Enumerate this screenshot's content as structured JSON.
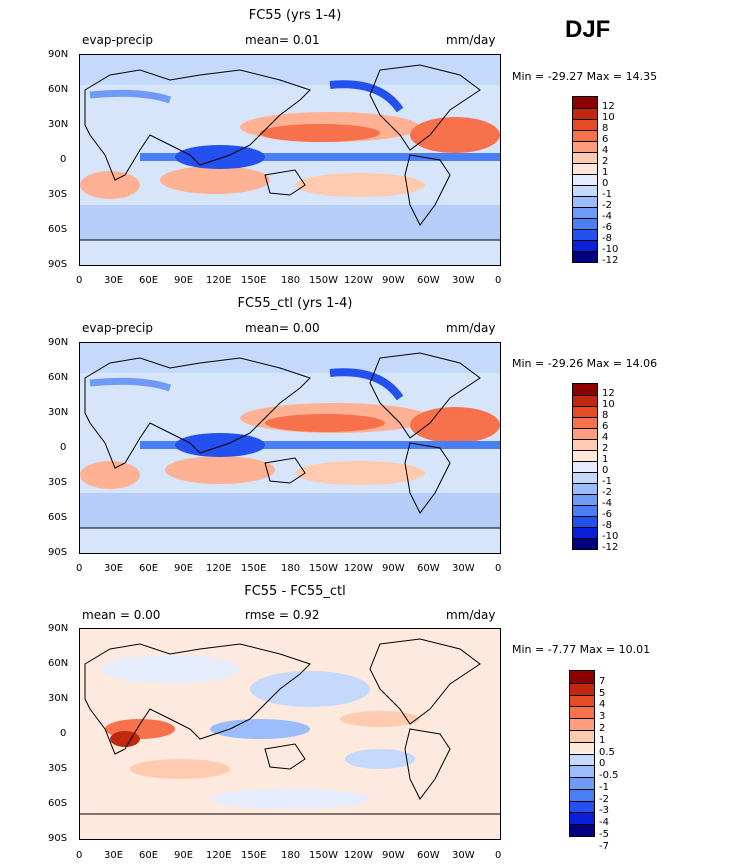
{
  "season": "DJF",
  "xticks": [
    "0",
    "30E",
    "60E",
    "90E",
    "120E",
    "150E",
    "180",
    "150W",
    "120W",
    "90W",
    "60W",
    "30W",
    "0"
  ],
  "yticks": [
    "90N",
    "60N",
    "30N",
    "0",
    "30S",
    "60S",
    "90S"
  ],
  "colors": {
    "ocean_base": "#d9e8ff",
    "land": "#cfe0f7",
    "coast": "#000000",
    "full_scale": [
      "#000080",
      "#0a1fd9",
      "#2450f0",
      "#4a7ef5",
      "#6f9bf7",
      "#9bbcfa",
      "#c5d9fd",
      "#e6eefd",
      "#ffe8d8",
      "#ffcbb0",
      "#ff9e7e",
      "#f6714c",
      "#e64b26",
      "#c0280f",
      "#8c0000"
    ],
    "diff_scale": [
      "#000080",
      "#0a1fd9",
      "#2450f0",
      "#4a7ef5",
      "#6f9bf7",
      "#9bbcfa",
      "#c5d9fd",
      "#ffe8d8",
      "#ffcbb0",
      "#ff9e7e",
      "#f6714c",
      "#e64b26",
      "#c0280f",
      "#8c0000"
    ]
  },
  "panels": [
    {
      "id": "fc55",
      "title": "FC55 (yrs 1-4)",
      "left_label": "evap-precip",
      "center_label": "mean=   0.01",
      "right_label": "mm/day",
      "minmax": "Min = -29.27  Max =  14.35",
      "cbar_labels": [
        "12",
        "10",
        "8",
        "6",
        "4",
        "2",
        "1",
        "0",
        "-1",
        "-2",
        "-4",
        "-6",
        "-8",
        "-10",
        "-12"
      ]
    },
    {
      "id": "ctl",
      "title": "FC55_ctl (yrs 1-4)",
      "left_label": "evap-precip",
      "center_label": "mean=   0.00",
      "right_label": "mm/day",
      "minmax": "Min = -29.26  Max =  14.06",
      "cbar_labels": [
        "12",
        "10",
        "8",
        "6",
        "4",
        "2",
        "1",
        "0",
        "-1",
        "-2",
        "-4",
        "-6",
        "-8",
        "-10",
        "-12"
      ]
    },
    {
      "id": "diff",
      "title": "FC55 - FC55_ctl",
      "left_label": "mean =   0.00",
      "center_label": "rmse =   0.92",
      "right_label": "mm/day",
      "minmax": "Min =  -7.77  Max =  10.01",
      "cbar_labels": [
        "7",
        "5",
        "4",
        "3",
        "2",
        "1",
        "0.5",
        "0",
        "-0.5",
        "-1",
        "-2",
        "-3",
        "-4",
        "-5",
        "-7"
      ]
    }
  ]
}
